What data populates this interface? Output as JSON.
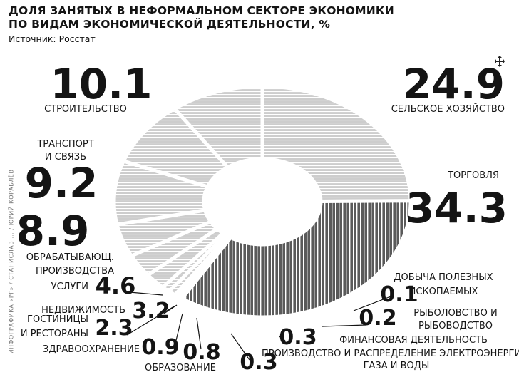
{
  "title_line1": "ДОЛЯ ЗАНЯТЫХ В НЕФОРМАЛЬНОМ СЕКТОРЕ ЭКОНОМИКИ",
  "title_line2": "ПО ВИДАМ ЭКОНОМИЧЕСКОЙ ДЕЯТЕЛЬНОСТИ, %",
  "source": "Источник: Росстат",
  "credit": "ИНФОГРАФИКА «РГ» / СТАНИСЛАВ ... / ЮРИЙ КОРАБЛЁВ",
  "colors": {
    "light": "#cdcdcd",
    "dark": "#5a5a5a",
    "hatch_light": "#ffffff",
    "hatch_dark": "#ffffff",
    "ink": "#141414"
  },
  "chart_data": {
    "type": "pie",
    "style": "donut",
    "slices": [
      {
        "label": "СЕЛЬСКОЕ ХОЗЯЙСТВО",
        "value": 24.9,
        "value_text": "24.9"
      },
      {
        "label": "ТОРГОВЛЯ",
        "value": 34.3,
        "value_text": "34.3"
      },
      {
        "label": "ДОБЫЧА ПОЛЕЗНЫХ ИСКОПАЕМЫХ",
        "value": 0.1,
        "value_text": "0.1"
      },
      {
        "label": "РЫБОЛОВСТВО И РЫБОВОДСТВО",
        "value": 0.2,
        "value_text": "0.2"
      },
      {
        "label": "ФИНАНСОВАЯ ДЕЯТЕЛЬНОСТЬ",
        "value": 0.3,
        "value_text": "0.3"
      },
      {
        "label": "ПРОИЗВОДСТВО И РАСПРЕДЕЛЕНИЕ ЭЛЕКТРОЭНЕРГИИ, ГАЗА И ВОДЫ",
        "value": 0.3,
        "value_text": "0.3"
      },
      {
        "label": "ОБРАЗОВАНИЕ",
        "value": 0.8,
        "value_text": "0.8"
      },
      {
        "label": "ЗДРАВООХРАНЕНИЕ",
        "value": 0.9,
        "value_text": "0.9"
      },
      {
        "label": "ГОСТИНИЦЫ И РЕСТОРАНЫ",
        "value": 2.3,
        "value_text": "2.3"
      },
      {
        "label": "НЕДВИЖИМОСТЬ",
        "value": 3.2,
        "value_text": "3.2"
      },
      {
        "label": "УСЛУГИ",
        "value": 4.6,
        "value_text": "4.6"
      },
      {
        "label": "ОБРАБАТЫВАЮЩ. ПРОИЗВОДСТВА",
        "value": 8.9,
        "value_text": "8.9"
      },
      {
        "label": "ТРАНСПОРТ И СВЯЗЬ",
        "value": 9.2,
        "value_text": "9.2"
      },
      {
        "label": "СТРОИТЕЛЬСТВО",
        "value": 10.1,
        "value_text": "10.1"
      }
    ]
  }
}
